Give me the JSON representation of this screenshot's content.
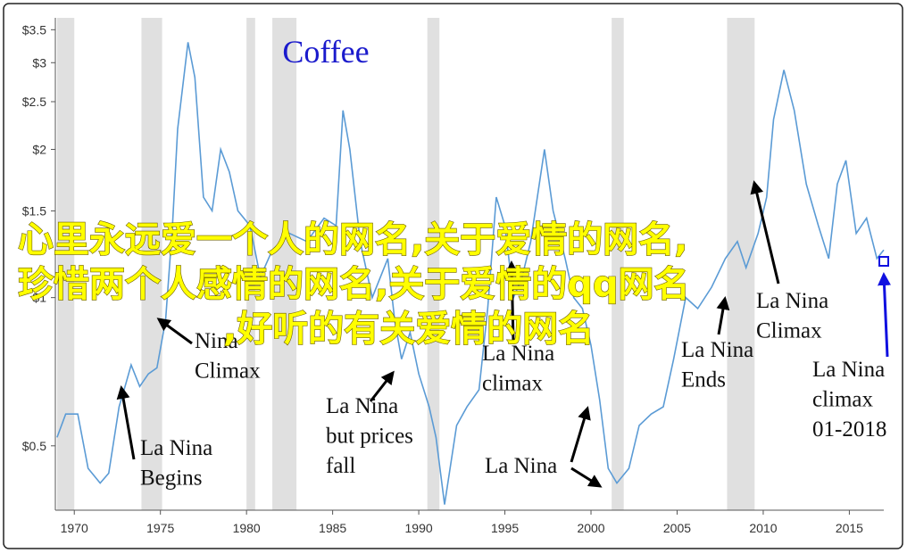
{
  "chart_data": {
    "type": "line",
    "title": "Coffee",
    "title_color": "#1a1acc",
    "log_y": true,
    "x": [
      1969,
      1969.5,
      1970.2,
      1970.8,
      1971.5,
      1972.0,
      1972.6,
      1973.0,
      1973.3,
      1973.8,
      1974.3,
      1974.8,
      1975.3,
      1975.7,
      1976.0,
      1976.6,
      1977.0,
      1977.5,
      1978.0,
      1978.5,
      1979.0,
      1979.5,
      1980.2,
      1980.8,
      1981.5,
      1982.5,
      1983.5,
      1984.5,
      1985.2,
      1985.6,
      1986.0,
      1986.6,
      1987.3,
      1988.2,
      1988.6,
      1989.0,
      1989.5,
      1990.0,
      1990.6,
      1991.0,
      1991.5,
      1992.2,
      1992.8,
      1993.5,
      1994.0,
      1994.5,
      1995.0,
      1995.5,
      1996.0,
      1996.5,
      1997.3,
      1997.8,
      1998.5,
      1999.0,
      1999.5,
      2000.0,
      2000.5,
      2001.0,
      2001.5,
      2002.2,
      2002.8,
      2003.5,
      2004.2,
      2004.8,
      2005.5,
      2006.2,
      2007.0,
      2007.8,
      2008.5,
      2009.0,
      2009.7,
      2010.2,
      2010.6,
      2011.2,
      2011.8,
      2012.5,
      2013.2,
      2013.8,
      2014.3,
      2014.8,
      2015.4,
      2016.0,
      2016.6,
      2017.0
    ],
    "series": [
      {
        "name": "Coffee",
        "color": "#5b9bd5",
        "values": [
          0.52,
          0.58,
          0.58,
          0.45,
          0.42,
          0.44,
          0.6,
          0.67,
          0.73,
          0.66,
          0.7,
          0.72,
          0.9,
          1.4,
          2.2,
          3.3,
          2.8,
          1.6,
          1.5,
          2.0,
          1.8,
          1.5,
          1.4,
          1.1,
          1.25,
          1.35,
          1.3,
          1.45,
          1.4,
          2.4,
          2.0,
          1.3,
          1.0,
          1.2,
          0.9,
          0.75,
          0.85,
          0.7,
          0.6,
          0.52,
          0.38,
          0.55,
          0.6,
          0.65,
          0.95,
          1.6,
          1.4,
          1.0,
          1.1,
          1.3,
          2.0,
          1.5,
          1.2,
          1.0,
          0.95,
          0.8,
          0.62,
          0.45,
          0.42,
          0.45,
          0.55,
          0.58,
          0.6,
          0.75,
          1.0,
          0.95,
          1.05,
          1.2,
          1.3,
          1.15,
          1.35,
          1.6,
          2.3,
          2.9,
          2.4,
          1.7,
          1.4,
          1.2,
          1.7,
          1.9,
          1.35,
          1.45,
          1.2,
          1.25
        ]
      }
    ],
    "xlim": [
      1968.9,
      2017.0
    ],
    "xticks": [
      1970,
      1975,
      1980,
      1985,
      1990,
      1995,
      2000,
      2005,
      2010,
      2015
    ],
    "ylim": [
      0.37,
      3.7
    ],
    "yticks": [
      {
        "value": 0.5,
        "label": "$0.5"
      },
      {
        "value": 1,
        "label": "$1"
      },
      {
        "value": 1.5,
        "label": "$1.5"
      },
      {
        "value": 2,
        "label": "$2"
      },
      {
        "value": 2.5,
        "label": "$2.5"
      },
      {
        "value": 3,
        "label": "$3"
      },
      {
        "value": 3.5,
        "label": "$3.5"
      }
    ],
    "shaded_periods": [
      [
        1969.0,
        1970.0
      ],
      [
        1973.9,
        1975.1
      ],
      [
        1980.0,
        1980.5
      ],
      [
        1981.5,
        1982.9
      ],
      [
        1990.5,
        1991.2
      ],
      [
        2001.2,
        2001.9
      ],
      [
        2007.9,
        2009.5
      ]
    ],
    "shade_color": "#e0e0e0",
    "annotations": [
      {
        "lines": [
          "Nina",
          "Climax"
        ]
      },
      {
        "lines": [
          "La Nina",
          "Begins"
        ]
      },
      {
        "lines": [
          "La Nina",
          "but prices",
          "fall"
        ]
      },
      {
        "lines": [
          "La Nina",
          "climax"
        ]
      },
      {
        "lines": [
          "La Nina"
        ]
      },
      {
        "lines": [
          "La Nina",
          "Ends"
        ]
      },
      {
        "lines": [
          "La Nina",
          "Climax"
        ]
      },
      {
        "lines": [
          "La Nina",
          "climax",
          "01-2018"
        ],
        "color": "#1010e0"
      }
    ]
  },
  "overlay": [
    "心里永远爱一个人的网名,关于爱情的网名,",
    "珍惜两个人感情的网名,关于爱情的qq网名",
    ",好听的有关爱情的网名"
  ]
}
